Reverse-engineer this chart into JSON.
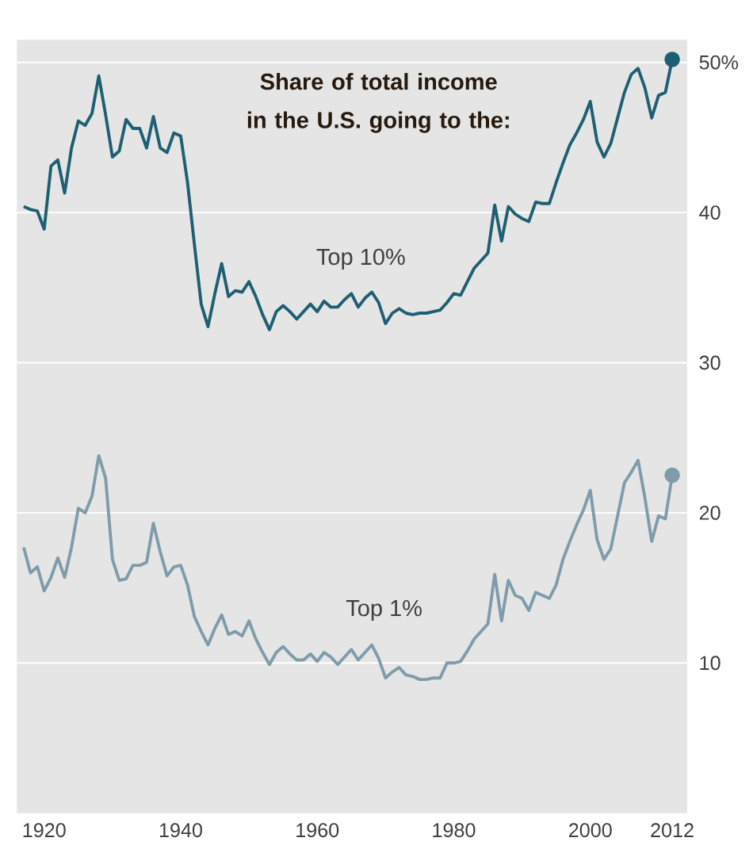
{
  "chart_data": {
    "type": "line",
    "title": "Share of total income in the U.S. going to the:",
    "x": [
      1917,
      1918,
      1919,
      1920,
      1921,
      1922,
      1923,
      1924,
      1925,
      1926,
      1927,
      1928,
      1929,
      1930,
      1931,
      1932,
      1933,
      1934,
      1935,
      1936,
      1937,
      1938,
      1939,
      1940,
      1941,
      1942,
      1943,
      1944,
      1945,
      1946,
      1947,
      1948,
      1949,
      1950,
      1951,
      1952,
      1953,
      1954,
      1955,
      1956,
      1957,
      1958,
      1959,
      1960,
      1961,
      1962,
      1963,
      1964,
      1965,
      1966,
      1967,
      1968,
      1969,
      1970,
      1971,
      1972,
      1973,
      1974,
      1975,
      1976,
      1977,
      1978,
      1979,
      1980,
      1981,
      1982,
      1983,
      1984,
      1985,
      1986,
      1987,
      1988,
      1989,
      1990,
      1991,
      1992,
      1993,
      1994,
      1995,
      1996,
      1997,
      1998,
      1999,
      2000,
      2001,
      2002,
      2003,
      2004,
      2005,
      2006,
      2007,
      2008,
      2009,
      2010,
      2011,
      2012
    ],
    "series": [
      {
        "name": "Top 10%",
        "color": "#1d5f73",
        "values": [
          40.4,
          40.2,
          40.1,
          38.9,
          43.1,
          43.5,
          41.3,
          44.3,
          46.1,
          45.8,
          46.6,
          49.1,
          46.5,
          43.7,
          44.1,
          46.2,
          45.6,
          45.6,
          44.3,
          46.4,
          44.3,
          44.0,
          45.3,
          45.1,
          42.0,
          37.9,
          33.9,
          32.4,
          34.6,
          36.6,
          34.4,
          34.8,
          34.7,
          35.4,
          34.4,
          33.2,
          32.2,
          33.4,
          33.8,
          33.4,
          32.9,
          33.4,
          33.9,
          33.4,
          34.1,
          33.7,
          33.7,
          34.2,
          34.6,
          33.7,
          34.3,
          34.7,
          34.0,
          32.6,
          33.3,
          33.6,
          33.3,
          33.2,
          33.3,
          33.3,
          33.4,
          33.5,
          34.0,
          34.6,
          34.5,
          35.4,
          36.3,
          36.8,
          37.3,
          40.5,
          38.1,
          40.4,
          39.9,
          39.6,
          39.4,
          40.7,
          40.6,
          40.6,
          42.0,
          43.3,
          44.5,
          45.3,
          46.2,
          47.4,
          44.7,
          43.7,
          44.6,
          46.3,
          48.0,
          49.2,
          49.6,
          48.3,
          46.3,
          47.8,
          48.0,
          50.2
        ]
      },
      {
        "name": "Top 1%",
        "color": "#7f9cab",
        "values": [
          17.7,
          16.0,
          16.4,
          14.8,
          15.7,
          17.0,
          15.7,
          17.7,
          20.3,
          20.0,
          21.1,
          23.8,
          22.3,
          16.9,
          15.5,
          15.6,
          16.5,
          16.5,
          16.7,
          19.3,
          17.4,
          15.8,
          16.4,
          16.5,
          15.2,
          13.1,
          12.1,
          11.2,
          12.3,
          13.2,
          11.9,
          12.1,
          11.8,
          12.8,
          11.6,
          10.7,
          9.9,
          10.7,
          11.1,
          10.6,
          10.2,
          10.2,
          10.6,
          10.1,
          10.7,
          10.4,
          9.9,
          10.4,
          10.9,
          10.2,
          10.7,
          11.2,
          10.3,
          9.0,
          9.4,
          9.7,
          9.2,
          9.1,
          8.9,
          8.9,
          9.0,
          9.0,
          10.0,
          10.0,
          10.1,
          10.8,
          11.6,
          12.1,
          12.6,
          15.9,
          12.8,
          15.5,
          14.5,
          14.3,
          13.5,
          14.7,
          14.5,
          14.3,
          15.2,
          16.9,
          18.1,
          19.2,
          20.2,
          21.5,
          18.2,
          16.9,
          17.6,
          19.8,
          22.0,
          22.7,
          23.5,
          21.0,
          18.1,
          19.8,
          19.6,
          22.5
        ]
      }
    ],
    "xlim": [
      1916,
      2014.2
    ],
    "ylim": [
      0,
      51.5
    ],
    "xticks": [
      1920,
      1940,
      1960,
      1980,
      2000,
      2012
    ],
    "yticks": [
      10,
      20,
      30,
      40,
      {
        "value": 50,
        "label": "50%"
      }
    ],
    "grid": "y",
    "marker": "none",
    "line_style": "solid",
    "legend": false
  }
}
